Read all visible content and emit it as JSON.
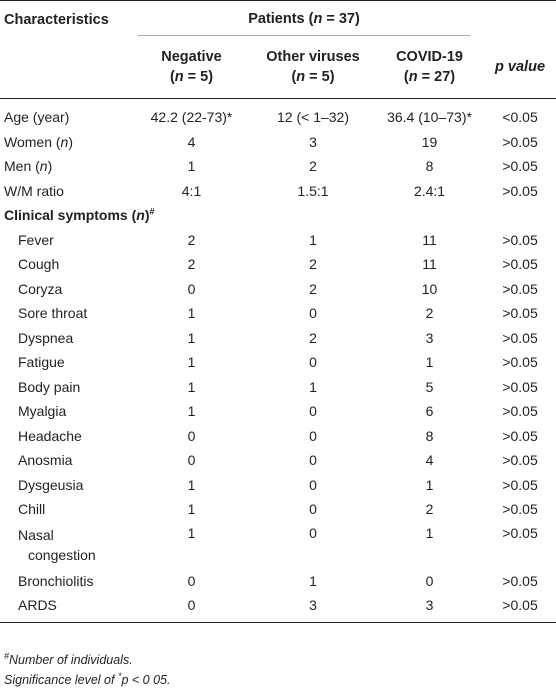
{
  "header": {
    "characteristics": "Characteristics",
    "patients_prefix": "Patients (",
    "patients_n": "n",
    "patients_suffix": " = 37)",
    "p_value": "p value",
    "columns": [
      {
        "name": "Negative",
        "n_prefix": "(",
        "n": "n",
        "n_suffix": " = 5)"
      },
      {
        "name": "Other viruses",
        "n_prefix": "(",
        "n": "n",
        "n_suffix": " = 5)"
      },
      {
        "name": "COVID-19",
        "n_prefix": "(",
        "n": "n",
        "n_suffix": " = 27)"
      }
    ]
  },
  "rows": [
    {
      "label": "Age (year)",
      "negative": "42.2 (22-73)*",
      "other": "12 (< 1–32)",
      "covid": "36.4 (10–73)*",
      "p": "<0.05"
    },
    {
      "label_pre": "Women (",
      "label_it": "n",
      "label_post": ")",
      "negative": "4",
      "other": "3",
      "covid": "19",
      "p": ">0.05"
    },
    {
      "label_pre": "Men (",
      "label_it": "n",
      "label_post": ")",
      "negative": "1",
      "other": "2",
      "covid": "8",
      "p": ">0.05"
    },
    {
      "label": "W/M ratio",
      "negative": "4:1",
      "other": "1.5:1",
      "covid": "2.4:1",
      "p": ">0.05"
    }
  ],
  "section": {
    "label_pre": "Clinical symptoms (",
    "label_it": "n",
    "label_post": ")",
    "sup": "#"
  },
  "symptoms": [
    {
      "label": "Fever",
      "negative": "2",
      "other": "1",
      "covid": "11",
      "p": ">0.05"
    },
    {
      "label": "Cough",
      "negative": "2",
      "other": "2",
      "covid": "11",
      "p": ">0.05"
    },
    {
      "label": "Coryza",
      "negative": "0",
      "other": "2",
      "covid": "10",
      "p": ">0.05"
    },
    {
      "label": "Sore throat",
      "negative": "1",
      "other": "0",
      "covid": "2",
      "p": ">0.05"
    },
    {
      "label": "Dyspnea",
      "negative": "1",
      "other": "2",
      "covid": "3",
      "p": ">0.05"
    },
    {
      "label": "Fatigue",
      "negative": "1",
      "other": "0",
      "covid": "1",
      "p": ">0.05"
    },
    {
      "label": "Body pain",
      "negative": "1",
      "other": "1",
      "covid": "5",
      "p": ">0.05"
    },
    {
      "label": "Myalgia",
      "negative": "1",
      "other": "0",
      "covid": "6",
      "p": ">0.05"
    },
    {
      "label": "Headache",
      "negative": "0",
      "other": "0",
      "covid": "8",
      "p": ">0.05"
    },
    {
      "label": "Anosmia",
      "negative": "0",
      "other": "0",
      "covid": "4",
      "p": ">0.05"
    },
    {
      "label": "Dysgeusia",
      "negative": "1",
      "other": "0",
      "covid": "1",
      "p": ">0.05"
    },
    {
      "label": "Chill",
      "negative": "1",
      "other": "0",
      "covid": "2",
      "p": ">0.05"
    },
    {
      "label_line1": "Nasal",
      "label_line2": "congestion",
      "negative": "1",
      "other": "0",
      "covid": "1",
      "p": ">0.05"
    },
    {
      "label": "Bronchiolitis",
      "negative": "0",
      "other": "1",
      "covid": "0",
      "p": ">0.05"
    },
    {
      "label": "ARDS",
      "negative": "0",
      "other": "3",
      "covid": "3",
      "p": ">0.05"
    }
  ],
  "footnotes": {
    "note1_sup": "#",
    "note1": "Number of individuals.",
    "note2_pre": "Significance level of ",
    "note2_sup": "*",
    "note2_p": "p",
    "note2_post": " < 0 05."
  }
}
